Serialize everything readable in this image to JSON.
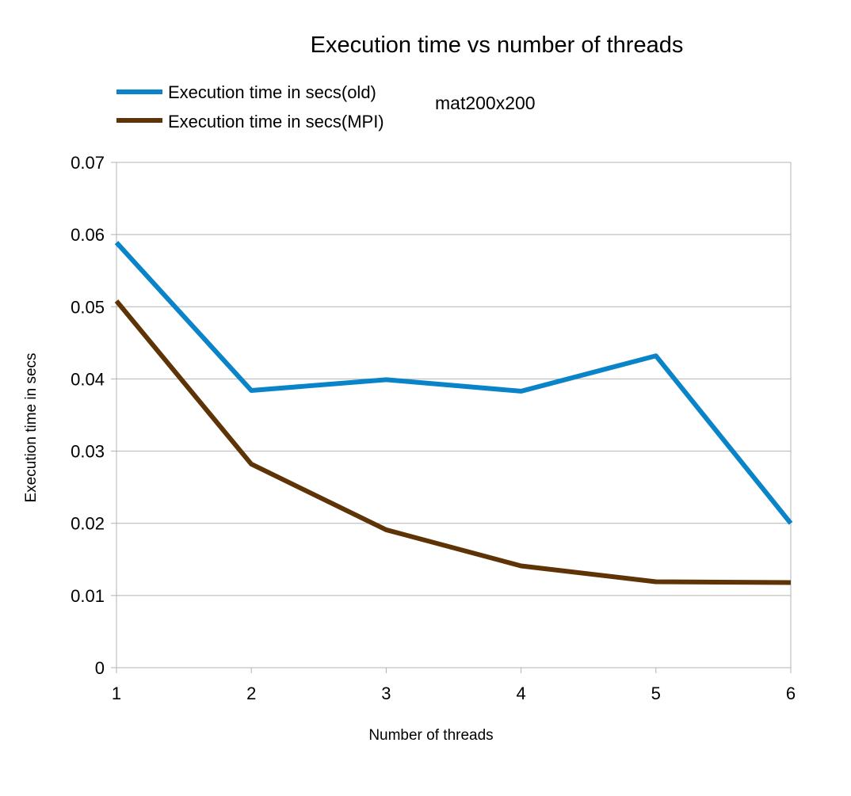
{
  "chart_data": {
    "type": "line",
    "title": "Execution time vs number of threads",
    "annotation": "mat200x200",
    "xlabel": "Number of threads",
    "ylabel": "Execution time in secs",
    "x": [
      1,
      2,
      3,
      4,
      5,
      6
    ],
    "x_tick_labels": [
      "1",
      "2",
      "3",
      "4",
      "5",
      "6"
    ],
    "xlim": [
      1,
      6
    ],
    "ylim": [
      0,
      0.07
    ],
    "y_tick_values": [
      0,
      0.01,
      0.02,
      0.03,
      0.04,
      0.05,
      0.06,
      0.07
    ],
    "y_tick_labels": [
      "0",
      "0.01",
      "0.02",
      "0.03",
      "0.04",
      "0.05",
      "0.06",
      "0.07"
    ],
    "grid": "horizontal",
    "legend_position": "top-left",
    "series": [
      {
        "name": "Execution time in secs(old)",
        "color": "#0a84c8",
        "values": [
          0.0589,
          0.0384,
          0.0399,
          0.0383,
          0.0432,
          0.02
        ]
      },
      {
        "name": "Execution time in secs(MPI)",
        "color": "#5e3305",
        "values": [
          0.0508,
          0.0282,
          0.0191,
          0.0141,
          0.0119,
          0.0118
        ]
      }
    ]
  }
}
